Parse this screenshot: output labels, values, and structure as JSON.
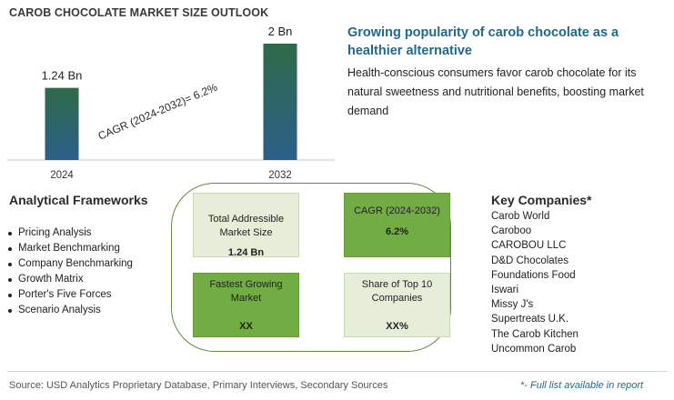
{
  "chart_data": {
    "type": "bar",
    "title": "CAROB CHOCOLATE MARKET SIZE OUTLOOK",
    "categories": [
      "2024",
      "2032"
    ],
    "values": [
      1.24,
      2
    ],
    "value_labels": [
      "1.24 Bn",
      "2 Bn"
    ],
    "unit": "Bn",
    "ylim": [
      0,
      2
    ],
    "annotation": "CAGR (2024-2032)=   6.2%",
    "grid": false,
    "bar_gradient": [
      "#2e6a4a",
      "#2b5f8a"
    ]
  },
  "headline": {
    "title": "Growing popularity of carob chocolate as a healthier alternative",
    "description": "Health-conscious consumers favor carob chocolate for its natural sweetness and nutritional benefits, boosting market demand"
  },
  "frameworks": {
    "title": "Analytical Frameworks",
    "items": [
      "Pricing Analysis",
      "Market Benchmarking",
      "Company Benchmarking",
      "Growth Matrix",
      "Porter's Five Forces",
      "Scenario Analysis"
    ]
  },
  "metrics": [
    {
      "label": "Total Addressible Market Size",
      "value": "1.24 Bn",
      "color": "#e6edd9"
    },
    {
      "label": "CAGR (2024-2032)",
      "value": "6.2%",
      "color": "#72ac44"
    },
    {
      "label": "Fastest Growing Market",
      "value": "XX",
      "color": "#72ac44"
    },
    {
      "label": "Share of Top 10 Companies",
      "value": "XX%",
      "color": "#e6edd9"
    }
  ],
  "companies": {
    "title": "Key Companies*",
    "items": [
      "Carob World",
      "Caroboo",
      "CAROBOU LLC",
      "D&D Chocolates",
      "Foundations Food",
      "Iswari",
      "Missy J's",
      "Supertreats U.K.",
      "The Carob Kitchen",
      "Uncommon Carob"
    ]
  },
  "footer": {
    "source": "Source: USD Analytics Proprietary Database, Primary Interviews, Secondary Sources",
    "note": "*- Full list available in report"
  },
  "colors": {
    "accent": "#1f6a8c",
    "green_dark": "#72ac44",
    "green_light": "#e6edd9",
    "oval_border": "#5d8a3c"
  }
}
